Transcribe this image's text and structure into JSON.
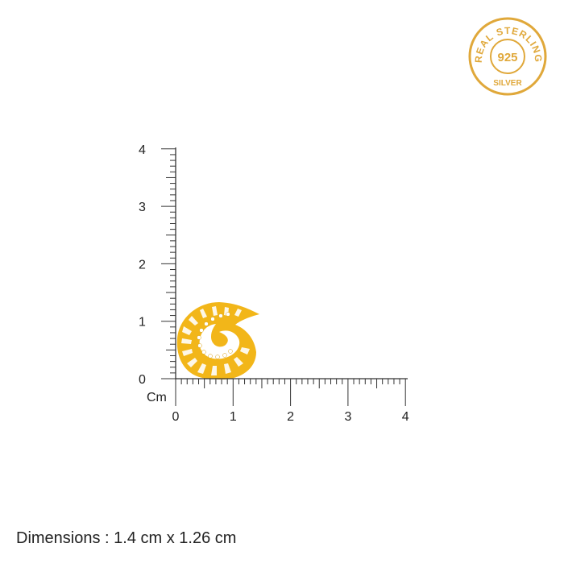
{
  "badge": {
    "top_text": "REAL STERLING",
    "center_text": "925",
    "bottom_text": "SILVER",
    "color": "#e0a83a"
  },
  "ruler": {
    "unit_label": "Cm",
    "y_ticks": [
      "0",
      "1",
      "2",
      "3",
      "4"
    ],
    "x_ticks": [
      "0",
      "1",
      "2",
      "3",
      "4"
    ],
    "minor_divisions_per_cm": 10
  },
  "product": {
    "name_icon": "gold-spiral-earring",
    "color": "#f2b619"
  },
  "dimensions": "Dimensions : 1.4 cm x 1.26 cm"
}
